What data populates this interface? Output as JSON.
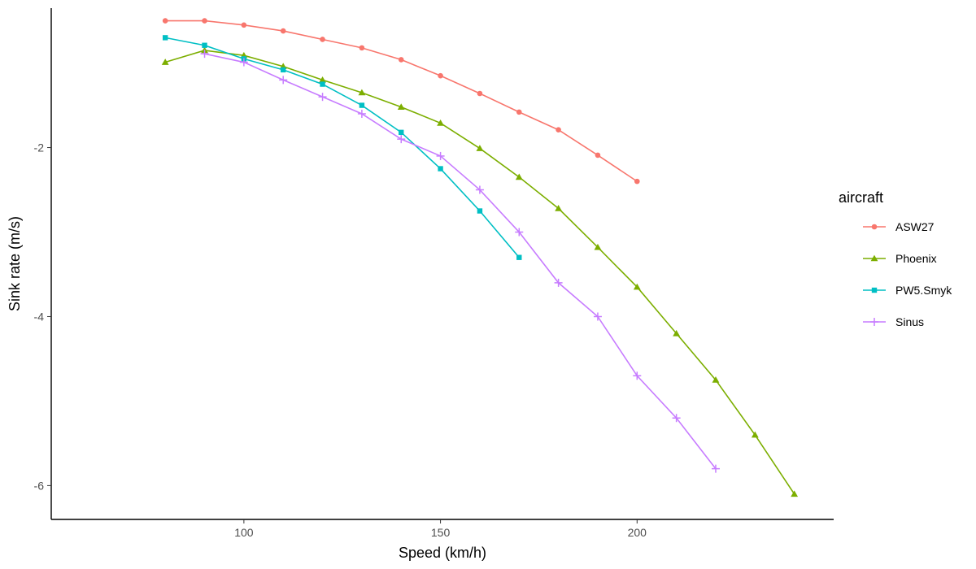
{
  "chart_data": {
    "type": "line",
    "title": "",
    "xlabel": "Speed (km/h)",
    "ylabel": "Sink rate (m/s)",
    "xlim": [
      51,
      250
    ],
    "ylim": [
      -6.4,
      -0.35
    ],
    "x_ticks": [
      100,
      150,
      200
    ],
    "y_ticks": [
      -2,
      -4,
      -6
    ],
    "grid": false,
    "legend": {
      "title": "aircraft",
      "placement": "right"
    },
    "series": [
      {
        "name": "ASW27",
        "color": "#F8766D",
        "marker": "circle",
        "points": [
          [
            80,
            -0.5
          ],
          [
            90,
            -0.5
          ],
          [
            100,
            -0.55
          ],
          [
            110,
            -0.62
          ],
          [
            120,
            -0.72
          ],
          [
            130,
            -0.82
          ],
          [
            140,
            -0.96
          ],
          [
            150,
            -1.15
          ],
          [
            160,
            -1.36
          ],
          [
            170,
            -1.58
          ],
          [
            180,
            -1.79
          ],
          [
            190,
            -2.09
          ],
          [
            200,
            -2.4
          ]
        ]
      },
      {
        "name": "Phoenix",
        "color": "#7CAE00",
        "marker": "triangle",
        "points": [
          [
            80,
            -0.99
          ],
          [
            90,
            -0.85
          ],
          [
            100,
            -0.91
          ],
          [
            110,
            -1.04
          ],
          [
            120,
            -1.2
          ],
          [
            130,
            -1.35
          ],
          [
            140,
            -1.52
          ],
          [
            150,
            -1.71
          ],
          [
            160,
            -2.01
          ],
          [
            170,
            -2.35
          ],
          [
            180,
            -2.72
          ],
          [
            190,
            -3.18
          ],
          [
            200,
            -3.65
          ],
          [
            210,
            -4.2
          ],
          [
            220,
            -4.75
          ],
          [
            230,
            -5.4
          ],
          [
            240,
            -6.1
          ]
        ]
      },
      {
        "name": "PW5.Smyk",
        "color": "#00BFC4",
        "marker": "square",
        "points": [
          [
            80,
            -0.7
          ],
          [
            90,
            -0.79
          ],
          [
            100,
            -0.95
          ],
          [
            110,
            -1.08
          ],
          [
            120,
            -1.25
          ],
          [
            130,
            -1.5
          ],
          [
            140,
            -1.82
          ],
          [
            150,
            -2.25
          ],
          [
            160,
            -2.75
          ],
          [
            170,
            -3.3
          ]
        ]
      },
      {
        "name": "Sinus",
        "color": "#C77CFF",
        "marker": "plus",
        "points": [
          [
            90,
            -0.89
          ],
          [
            100,
            -0.99
          ],
          [
            110,
            -1.2
          ],
          [
            120,
            -1.4
          ],
          [
            130,
            -1.6
          ],
          [
            140,
            -1.9
          ],
          [
            150,
            -2.1
          ],
          [
            160,
            -2.5
          ],
          [
            170,
            -3.0
          ],
          [
            180,
            -3.6
          ],
          [
            190,
            -4.0
          ],
          [
            200,
            -4.7
          ],
          [
            210,
            -5.2
          ],
          [
            220,
            -5.8
          ]
        ]
      }
    ]
  }
}
